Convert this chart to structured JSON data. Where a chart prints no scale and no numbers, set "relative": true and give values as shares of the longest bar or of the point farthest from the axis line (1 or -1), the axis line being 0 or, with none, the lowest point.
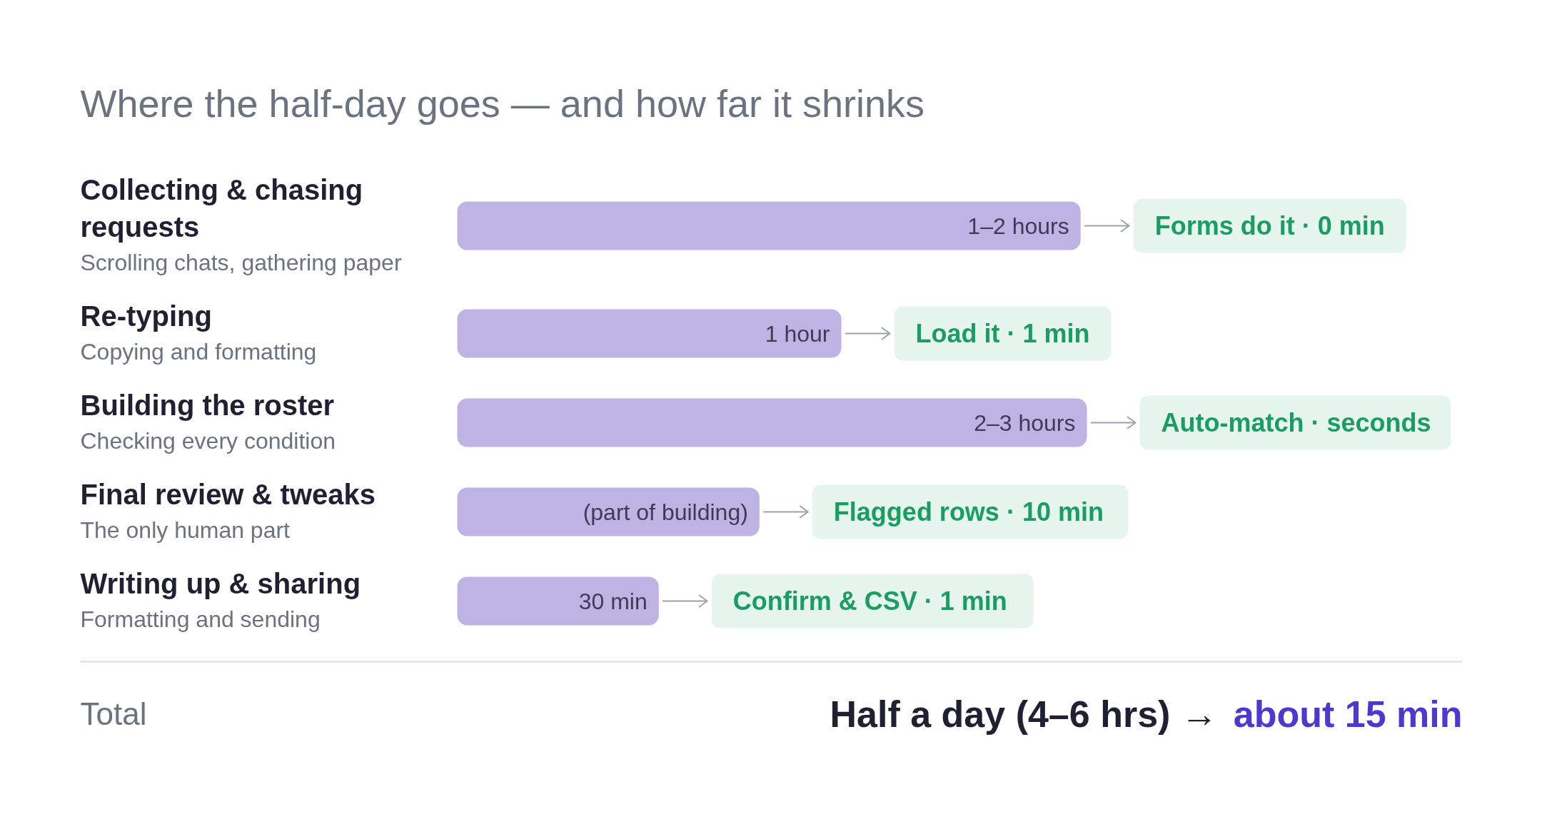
{
  "chart_data": {
    "type": "bar",
    "orientation": "horizontal",
    "relative": true,
    "title": "Where the half-day goes — and how far it shrinks",
    "categories": [
      "Collecting & chasing requests\nScrolling chats, gathering paper",
      "Re-typing\nCopying and formatting",
      "Building the roster\nChecking every condition",
      "Final review & tweaks\nThe only human part",
      "Writing up & sharing\nFormatting and sending"
    ],
    "values": [
      0.99,
      0.61,
      1,
      0.48,
      0.32
    ],
    "color": "#bdb4e3",
    "annotations": [
      {
        "text": "1–2 hours",
        "x": 0.99,
        "y": "Collecting & chasing requests\nScrolling chats, gathering paper"
      },
      {
        "text": "Forms do it · 0 min",
        "x": 0.99,
        "y": "Collecting & chasing requests\nScrolling chats, gathering paper"
      },
      {
        "text": "1 hour",
        "x": 0.61,
        "y": "Re-typing\nCopying and formatting"
      },
      {
        "text": "Load it · 1 min",
        "x": 0.61,
        "y": "Re-typing\nCopying and formatting"
      },
      {
        "text": "2–3 hours",
        "x": 1,
        "y": "Building the roster\nChecking every condition"
      },
      {
        "text": "Auto-match · seconds",
        "x": 1,
        "y": "Building the roster\nChecking every condition"
      },
      {
        "text": "(part of building)",
        "x": 0.48,
        "y": "Final review & tweaks\nThe only human part"
      },
      {
        "text": "Flagged rows · 10 min",
        "x": 0.48,
        "y": "Final review & tweaks\nThe only human part"
      },
      {
        "text": "30 min",
        "x": 0.32,
        "y": "Writing up & sharing\nFormatting and sending"
      },
      {
        "text": "Confirm & CSV · 1 min",
        "x": 0.32,
        "y": "Writing up & sharing\nFormatting and sending"
      },
      "Total",
      "Half a day (4–6 hrs) →",
      "about 15 min"
    ]
  }
}
